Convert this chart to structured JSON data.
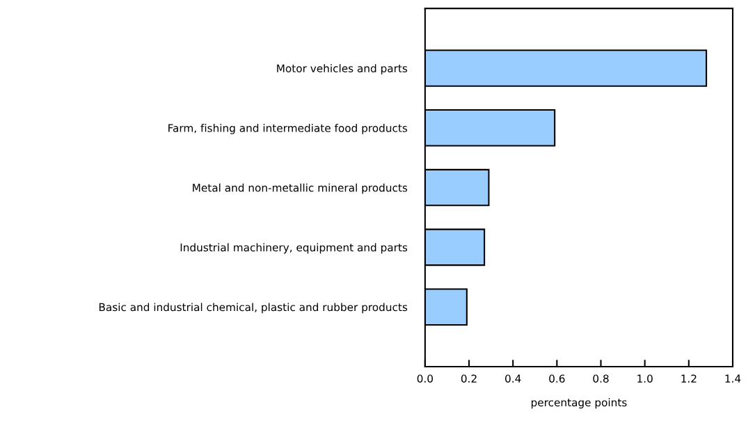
{
  "chart_data": {
    "type": "bar",
    "orientation": "horizontal",
    "xlabel": "percentage points",
    "categories": [
      "Motor vehicles and parts",
      "Farm, fishing and intermediate food products",
      "Metal and non-metallic mineral products",
      "Industrial machinery, equipment and parts",
      "Basic and industrial chemical, plastic and rubber products"
    ],
    "values": [
      1.28,
      0.59,
      0.29,
      0.27,
      0.19
    ],
    "color": "#99ccff",
    "xlim": [
      0,
      1.4
    ],
    "xticks": [
      {
        "value": 0,
        "label": "0.0"
      },
      0.2,
      0.4,
      0.6,
      0.8,
      {
        "value": 1.0,
        "label": "1.0"
      },
      1.2,
      1.4
    ],
    "grid": false,
    "legend": false
  }
}
